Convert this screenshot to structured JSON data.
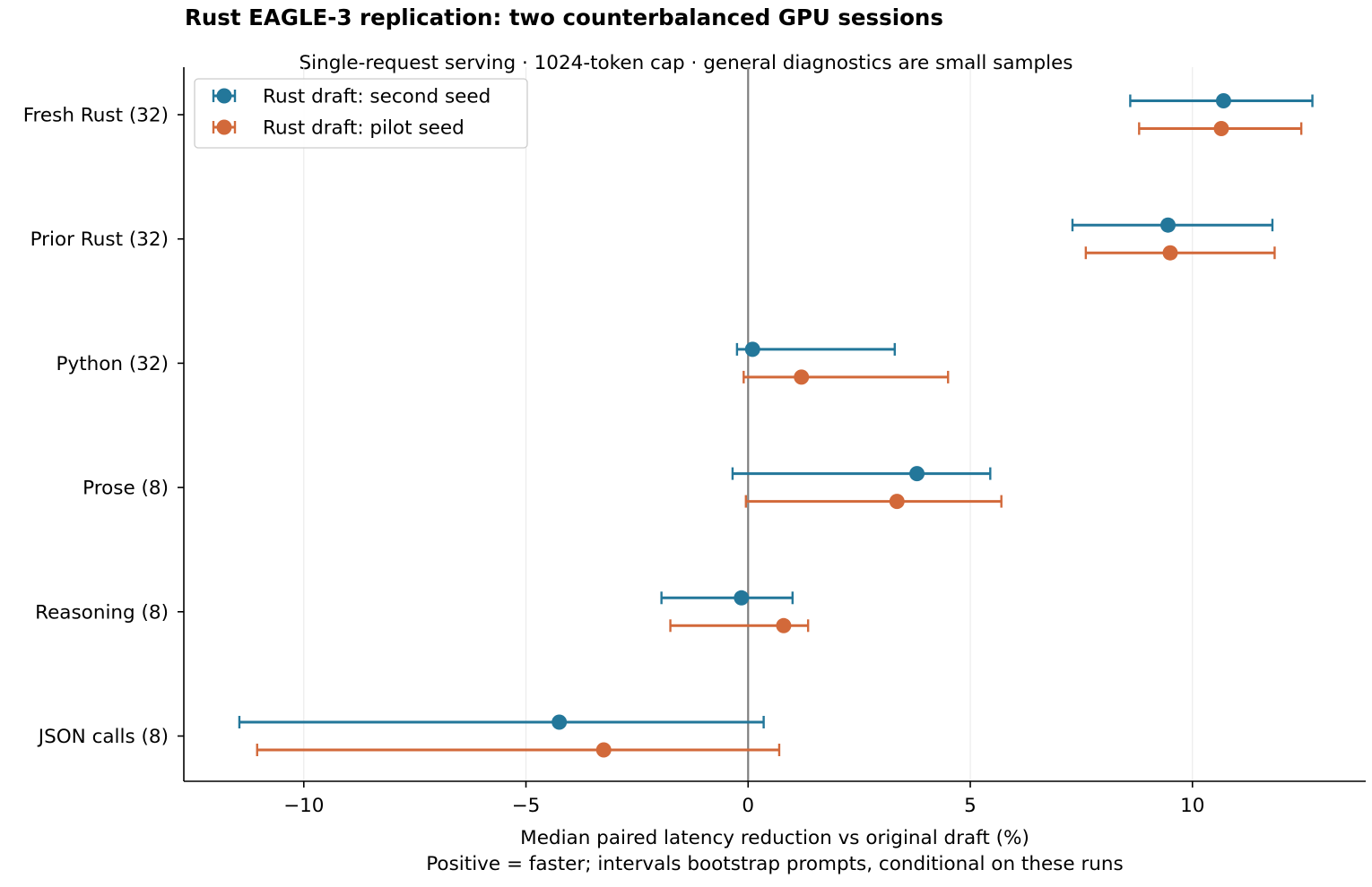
{
  "chart_data": {
    "type": "scatter",
    "title": "Rust EAGLE-3 replication: two counterbalanced GPU sessions",
    "subtitle": "Single-request serving · 1024-token cap · general diagnostics are small samples",
    "xlabel": "Median paired latency reduction vs original draft (%)",
    "xlabel_note": "Positive = faster; intervals bootstrap prompts, conditional on these runs",
    "ylabel": "",
    "xlim": [
      -12.7,
      13.9
    ],
    "xticks": [
      -10,
      -5,
      0,
      5,
      10
    ],
    "xtick_labels": [
      "−10",
      "−5",
      "0",
      "5",
      "10"
    ],
    "grid": "vertical",
    "reference_line_x": 0,
    "legend_position": "top-left",
    "categories": [
      "Fresh Rust (32)",
      "Prior Rust (32)",
      "Python (32)",
      "Prose (8)",
      "Reasoning (8)",
      "JSON calls (8)"
    ],
    "series": [
      {
        "name": "Rust draft: second seed",
        "color": "#23779a",
        "points": [
          {
            "category": "Fresh Rust (32)",
            "value": 10.7,
            "ci_low": 8.6,
            "ci_high": 12.7
          },
          {
            "category": "Prior Rust (32)",
            "value": 9.45,
            "ci_low": 7.3,
            "ci_high": 11.8
          },
          {
            "category": "Python (32)",
            "value": 0.1,
            "ci_low": -0.25,
            "ci_high": 3.3
          },
          {
            "category": "Prose (8)",
            "value": 3.8,
            "ci_low": -0.35,
            "ci_high": 5.45
          },
          {
            "category": "Reasoning (8)",
            "value": -0.15,
            "ci_low": -1.95,
            "ci_high": 1.0
          },
          {
            "category": "JSON calls (8)",
            "value": -4.25,
            "ci_low": -11.45,
            "ci_high": 0.35
          }
        ]
      },
      {
        "name": "Rust draft: pilot seed",
        "color": "#d2693a",
        "points": [
          {
            "category": "Fresh Rust (32)",
            "value": 10.65,
            "ci_low": 8.8,
            "ci_high": 12.45
          },
          {
            "category": "Prior Rust (32)",
            "value": 9.5,
            "ci_low": 7.6,
            "ci_high": 11.85
          },
          {
            "category": "Python (32)",
            "value": 1.2,
            "ci_low": -0.1,
            "ci_high": 4.5
          },
          {
            "category": "Prose (8)",
            "value": 3.35,
            "ci_low": -0.05,
            "ci_high": 5.7
          },
          {
            "category": "Reasoning (8)",
            "value": 0.8,
            "ci_low": -1.75,
            "ci_high": 1.35
          },
          {
            "category": "JSON calls (8)",
            "value": -3.25,
            "ci_low": -11.05,
            "ci_high": 0.7
          }
        ]
      }
    ]
  }
}
